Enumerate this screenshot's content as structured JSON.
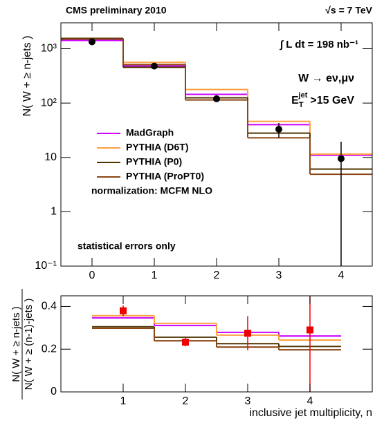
{
  "chart_data": [
    {
      "type": "step",
      "header_left": "CMS preliminary 2010",
      "header_right": "√s = 7 TeV",
      "lumi": "∫ L dt = 198 nb⁻¹",
      "process": "W → eν,μν",
      "cut": {
        "main": "E",
        "sub": "T",
        "sup": "jet",
        "rest": ">15 GeV"
      },
      "note": "normalization: MCFM NLO",
      "footnote": "statistical errors only",
      "ylabel": "N( W + ≥ n-jets )",
      "x": [
        0,
        1,
        2,
        3,
        4
      ],
      "bins": [
        -0.5,
        0.5,
        1.5,
        2.5,
        3.5,
        4.5
      ],
      "xlim": [
        -0.5,
        4.5
      ],
      "xticks": [
        0,
        1,
        2,
        3,
        4
      ],
      "ylim": [
        0.1,
        3000
      ],
      "log_y": true,
      "yticks": [
        {
          "value": 0.1,
          "label": "10⁻¹"
        },
        1,
        10,
        {
          "value": 100,
          "label": "10²"
        },
        {
          "value": 1000,
          "label": "10³"
        }
      ],
      "legend": "center left",
      "series": [
        {
          "name": "MadGraph",
          "color": "#cc00ff",
          "values": [
            1420,
            480,
            145,
            40,
            11
          ]
        },
        {
          "name": "PYTHIA (D6T)",
          "color": "#ffa040",
          "values": [
            1550,
            560,
            178,
            46,
            11.5
          ]
        },
        {
          "name": "PYTHIA (P0)",
          "color": "#4d3300",
          "values": [
            1550,
            455,
            125,
            28,
            6.1
          ]
        },
        {
          "name": "PYTHIA (ProPT0)",
          "color": "#8b4513",
          "values": [
            1500,
            510,
            114,
            23,
            4.9
          ]
        }
      ],
      "points": {
        "color": "#000000",
        "marker": "circle",
        "values": [
          1340,
          480,
          120,
          33,
          9.5
        ],
        "errors": [
          40,
          25,
          11,
          10,
          10
        ]
      }
    },
    {
      "type": "step",
      "ylabel_numerator": "N( W + ≥ n-jets )",
      "ylabel_denominator": "N( W + ≥ (n-1)-jets )",
      "xlabel": "inclusive jet multiplicity, n",
      "x": [
        1,
        2,
        3,
        4
      ],
      "bins": [
        0.5,
        1.5,
        2.5,
        3.5,
        4.5
      ],
      "xlim": [
        0,
        5
      ],
      "xticks": [
        1,
        2,
        3,
        4
      ],
      "ylim": [
        0,
        0.45
      ],
      "yticks": [
        0,
        0.2,
        0.4
      ],
      "series": [
        {
          "name": "MadGraph",
          "color": "#cc00ff",
          "values": [
            0.347,
            0.311,
            0.279,
            0.262
          ]
        },
        {
          "name": "PYTHIA (D6T)",
          "color": "#ffa040",
          "values": [
            0.357,
            0.321,
            0.266,
            0.243
          ]
        },
        {
          "name": "PYTHIA (P0)",
          "color": "#4d3300",
          "values": [
            0.305,
            0.256,
            0.226,
            0.213
          ]
        },
        {
          "name": "PYTHIA (ProPT0)",
          "color": "#8b4513",
          "values": [
            0.298,
            0.239,
            0.21,
            0.197
          ]
        }
      ],
      "points": {
        "color": "#ee0000",
        "marker": "square",
        "values": [
          0.38,
          0.233,
          0.275,
          0.29
        ],
        "errors": [
          0.025,
          0.02,
          0.08,
          0.3
        ]
      }
    }
  ]
}
